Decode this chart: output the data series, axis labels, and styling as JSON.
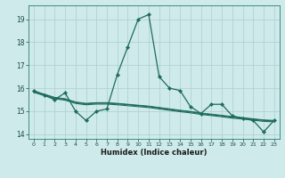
{
  "xlabel": "Humidex (Indice chaleur)",
  "ylabel": "",
  "background_color": "#ceeaea",
  "line_color": "#1e6b5e",
  "grid_color": "#aecece",
  "xlim": [
    -0.5,
    23.5
  ],
  "ylim": [
    13.8,
    19.6
  ],
  "yticks": [
    14,
    15,
    16,
    17,
    18,
    19
  ],
  "xticks": [
    0,
    1,
    2,
    3,
    4,
    5,
    6,
    7,
    8,
    9,
    10,
    11,
    12,
    13,
    14,
    15,
    16,
    17,
    18,
    19,
    20,
    21,
    22,
    23
  ],
  "series_main": [
    15.9,
    15.7,
    15.5,
    15.8,
    15.0,
    14.6,
    15.0,
    15.1,
    16.6,
    17.8,
    19.0,
    19.2,
    16.5,
    16.0,
    15.9,
    15.2,
    14.9,
    15.3,
    15.3,
    14.8,
    14.7,
    14.6,
    14.1,
    14.6
  ],
  "series_flat1": [
    15.85,
    15.72,
    15.58,
    15.52,
    15.38,
    15.32,
    15.35,
    15.35,
    15.32,
    15.28,
    15.24,
    15.2,
    15.14,
    15.08,
    15.02,
    14.97,
    14.9,
    14.85,
    14.8,
    14.74,
    14.7,
    14.65,
    14.6,
    14.58
  ],
  "series_flat2": [
    15.88,
    15.74,
    15.6,
    15.54,
    15.4,
    15.34,
    15.37,
    15.37,
    15.34,
    15.3,
    15.26,
    15.22,
    15.16,
    15.1,
    15.04,
    14.99,
    14.92,
    14.87,
    14.82,
    14.76,
    14.72,
    14.67,
    14.62,
    14.6
  ],
  "series_flat3": [
    15.82,
    15.68,
    15.54,
    15.48,
    15.34,
    15.28,
    15.31,
    15.31,
    15.28,
    15.24,
    15.2,
    15.16,
    15.1,
    15.04,
    14.98,
    14.93,
    14.86,
    14.81,
    14.76,
    14.7,
    14.66,
    14.61,
    14.56,
    14.54
  ]
}
